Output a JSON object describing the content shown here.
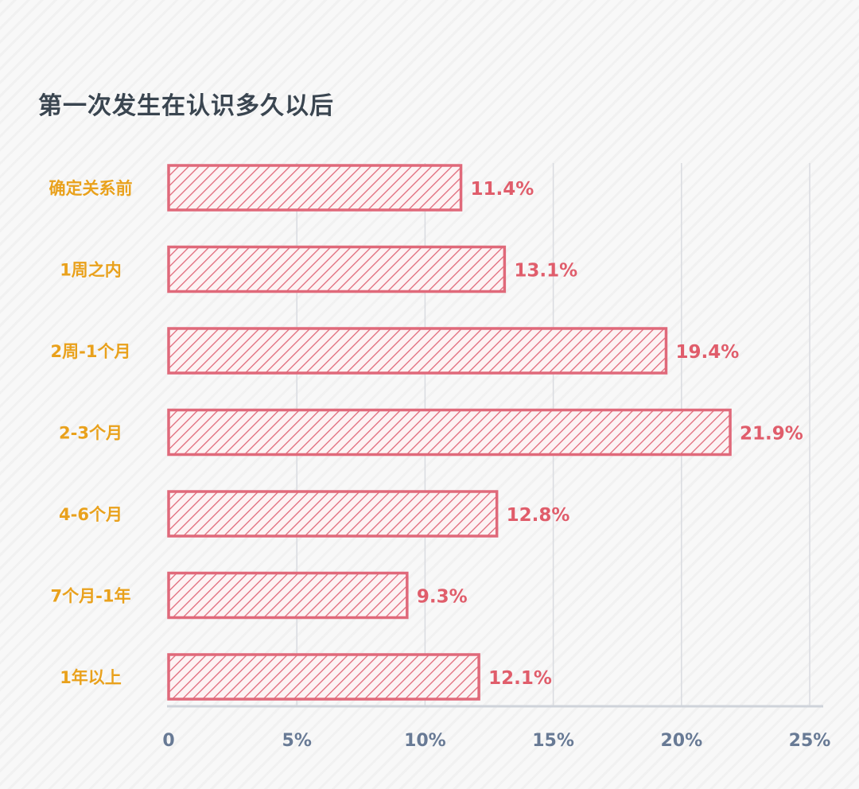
{
  "chart_data": {
    "type": "bar",
    "orientation": "horizontal",
    "title": "第一次发生在认识多久以后",
    "categories": [
      "确定关系前",
      "1周之内",
      "2周-1个月",
      "2-3个月",
      "4-6个月",
      "7个月-1年",
      "1年以上"
    ],
    "values": [
      11.4,
      13.1,
      19.4,
      21.9,
      12.8,
      9.3,
      12.1
    ],
    "value_labels": [
      "11.4%",
      "13.1%",
      "19.4%",
      "21.9%",
      "12.8%",
      "9.3%",
      "12.1%"
    ],
    "xlim": [
      0,
      25
    ],
    "xticks": [
      0,
      5,
      10,
      15,
      20,
      25
    ],
    "xtick_labels": [
      "0",
      "5%",
      "10%",
      "15%",
      "20%",
      "25%"
    ],
    "xlabel": "",
    "ylabel": "",
    "grid": true,
    "colors": {
      "bar_stroke": "#e0697a",
      "bar_hatch": "#e0697a",
      "bar_fill": "#fdf3f4",
      "category_label": "#e9a11c",
      "value_label": "#e05d6b",
      "tick_label": "#687a95",
      "grid": "#d9dbe0",
      "axis": "#cfd3da",
      "title": "#3a4550"
    }
  }
}
